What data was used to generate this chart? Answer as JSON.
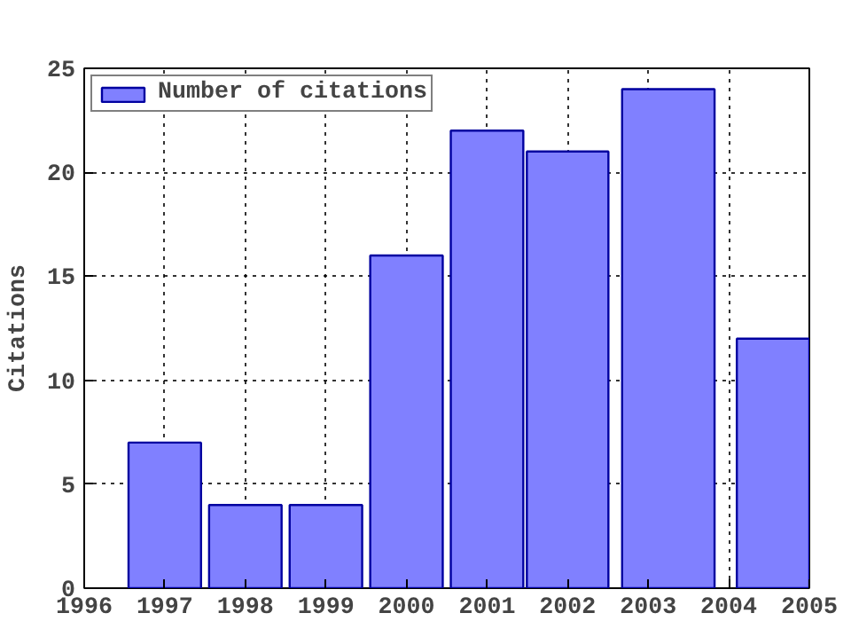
{
  "chart_data": {
    "type": "bar",
    "ylabel": "Citations",
    "x": [
      1997,
      1998,
      1999,
      2000,
      2001,
      2002,
      2003.25,
      2004.55
    ],
    "series": [
      {
        "name": "Number of citations",
        "color": "#8080ff",
        "values": [
          7,
          4,
          4,
          16,
          22,
          21,
          24,
          12
        ]
      }
    ],
    "xlim": [
      1996,
      2005
    ],
    "xticks": [
      1996,
      1997,
      1998,
      1999,
      2000,
      2001,
      2002,
      2003,
      2004,
      2005
    ],
    "ylim": [
      0,
      25
    ],
    "yticks": [
      0,
      5,
      10,
      15,
      20,
      25
    ],
    "grid": true,
    "legend": "top left"
  }
}
